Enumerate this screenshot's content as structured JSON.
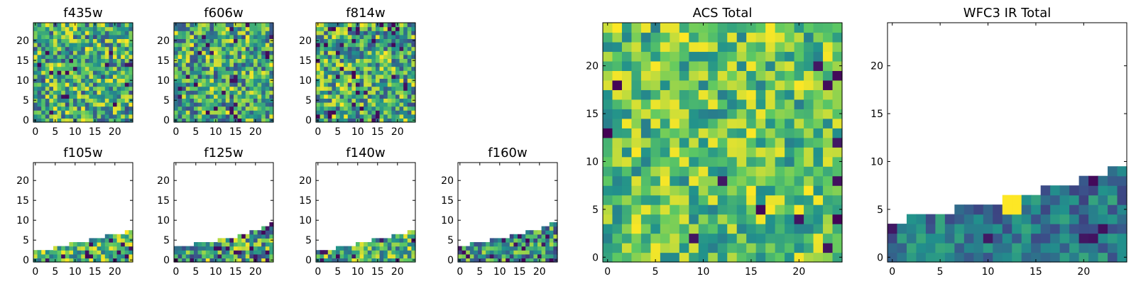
{
  "figure": {
    "background": "#ffffff",
    "colormap": [
      "#440154",
      "#3b528b",
      "#21918c",
      "#5ec962",
      "#fde725"
    ]
  },
  "chart_data": [
    {
      "type": "heatmap",
      "title": "f435w",
      "xlim": [
        -0.5,
        24.5
      ],
      "ylim": [
        -0.5,
        24.5
      ],
      "xticks": [
        0,
        5,
        10,
        15,
        20
      ],
      "yticks": [
        0,
        5,
        10,
        15,
        20
      ],
      "fill": "full",
      "seed": 11,
      "grid_size": 25,
      "color_range": [
        0.22,
        1.0
      ],
      "dark_fraction": 0.03
    },
    {
      "type": "heatmap",
      "title": "f606w",
      "xlim": [
        -0.5,
        24.5
      ],
      "ylim": [
        -0.5,
        24.5
      ],
      "xticks": [
        0,
        5,
        10,
        15,
        20
      ],
      "yticks": [
        0,
        5,
        10,
        15,
        20
      ],
      "fill": "full",
      "seed": 23,
      "grid_size": 25,
      "color_range": [
        0.22,
        1.0
      ],
      "dark_fraction": 0.03
    },
    {
      "type": "heatmap",
      "title": "f814w",
      "xlim": [
        -0.5,
        24.5
      ],
      "ylim": [
        -0.5,
        24.5
      ],
      "xticks": [
        0,
        5,
        10,
        15,
        20
      ],
      "yticks": [
        0,
        5,
        10,
        15,
        20
      ],
      "fill": "full",
      "seed": 37,
      "grid_size": 25,
      "color_range": [
        0.22,
        1.0
      ],
      "dark_fraction": 0.06
    },
    {
      "type": "heatmap",
      "title": "f105w",
      "xlim": [
        -0.5,
        24.5
      ],
      "ylim": [
        -0.5,
        24.5
      ],
      "xticks": [
        0,
        5,
        10,
        15,
        20
      ],
      "yticks": [
        0,
        5,
        10,
        15,
        20
      ],
      "fill": "rising",
      "seed": 41,
      "grid_size": 25,
      "column_heights": [
        3,
        3,
        3,
        3,
        3,
        4,
        4,
        4,
        4,
        5,
        5,
        5,
        5,
        5,
        6,
        6,
        6,
        6,
        7,
        7,
        7,
        7,
        7,
        8,
        8
      ],
      "color_range": [
        0.35,
        1.0
      ],
      "dark_fraction": 0.12
    },
    {
      "type": "heatmap",
      "title": "f125w",
      "xlim": [
        -0.5,
        24.5
      ],
      "ylim": [
        -0.5,
        24.5
      ],
      "xticks": [
        0,
        5,
        10,
        15,
        20
      ],
      "yticks": [
        0,
        5,
        10,
        15,
        20
      ],
      "fill": "rising",
      "seed": 53,
      "grid_size": 25,
      "column_heights": [
        4,
        4,
        4,
        4,
        4,
        5,
        5,
        5,
        5,
        5,
        5,
        6,
        6,
        6,
        6,
        6,
        7,
        7,
        7,
        8,
        8,
        8,
        9,
        9,
        10
      ],
      "color_range": [
        0.2,
        1.0
      ],
      "dark_fraction": 0.1
    },
    {
      "type": "heatmap",
      "title": "f140w",
      "xlim": [
        -0.5,
        24.5
      ],
      "ylim": [
        -0.5,
        24.5
      ],
      "xticks": [
        0,
        5,
        10,
        15,
        20
      ],
      "yticks": [
        0,
        5,
        10,
        15,
        20
      ],
      "fill": "rising",
      "seed": 67,
      "grid_size": 25,
      "column_heights": [
        3,
        3,
        3,
        3,
        3,
        4,
        4,
        4,
        4,
        4,
        5,
        5,
        5,
        5,
        6,
        6,
        6,
        6,
        6,
        7,
        7,
        7,
        7,
        8,
        8
      ],
      "color_range": [
        0.3,
        1.0
      ],
      "dark_fraction": 0.08
    },
    {
      "type": "heatmap",
      "title": "f160w",
      "xlim": [
        -0.5,
        24.5
      ],
      "ylim": [
        -0.5,
        24.5
      ],
      "xticks": [
        0,
        5,
        10,
        15,
        20
      ],
      "yticks": [
        0,
        5,
        10,
        15,
        20
      ],
      "fill": "rising",
      "seed": 79,
      "grid_size": 25,
      "column_heights": [
        4,
        4,
        4,
        5,
        5,
        5,
        5,
        5,
        6,
        6,
        6,
        6,
        6,
        7,
        7,
        7,
        7,
        8,
        8,
        8,
        8,
        9,
        9,
        10,
        10
      ],
      "color_range": [
        0.18,
        0.9
      ],
      "dark_fraction": 0.08
    },
    {
      "type": "heatmap",
      "title": "ACS Total",
      "xlim": [
        -0.5,
        24.5
      ],
      "ylim": [
        -0.5,
        24.5
      ],
      "xticks": [
        0,
        5,
        10,
        15,
        20
      ],
      "yticks": [
        0,
        5,
        10,
        15,
        20
      ],
      "fill": "full",
      "seed": 97,
      "grid_size": 25,
      "color_range": [
        0.42,
        1.0
      ],
      "dark_fraction": 0.025
    },
    {
      "type": "heatmap",
      "title": "WFC3 IR Total",
      "xlim": [
        -0.5,
        24.5
      ],
      "ylim": [
        -0.5,
        24.5
      ],
      "xticks": [
        0,
        5,
        10,
        15,
        20
      ],
      "yticks": [
        0,
        5,
        10,
        15,
        20
      ],
      "fill": "rising",
      "seed": 103,
      "grid_size": 25,
      "column_heights": [
        4,
        4,
        5,
        5,
        5,
        5,
        5,
        6,
        6,
        6,
        6,
        6,
        7,
        7,
        7,
        7,
        8,
        8,
        8,
        8,
        9,
        9,
        9,
        10,
        10
      ],
      "color_range": [
        0.2,
        0.6
      ],
      "dark_fraction": 0.04,
      "hotspots": [
        {
          "x": 12,
          "y": 5,
          "v": 1.0
        },
        {
          "x": 13,
          "y": 5,
          "v": 1.0
        },
        {
          "x": 12,
          "y": 6,
          "v": 1.0
        },
        {
          "x": 13,
          "y": 6,
          "v": 1.0
        }
      ]
    }
  ]
}
